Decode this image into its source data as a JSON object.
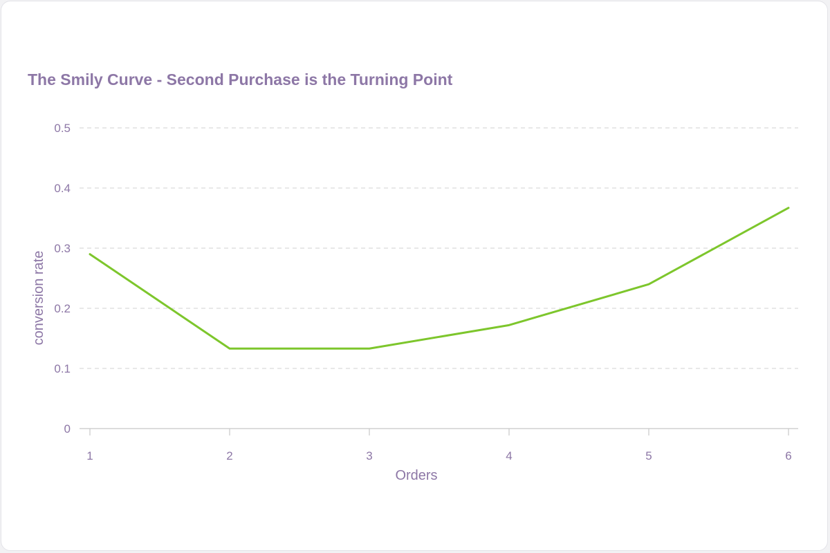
{
  "chart_data": {
    "type": "line",
    "title": "The Smily Curve - Second Purchase is the Turning Point",
    "xlabel": "Orders",
    "ylabel": "conversion rate",
    "x": [
      1,
      2,
      3,
      4,
      5,
      6
    ],
    "x_tick_labels": [
      "1",
      "2",
      "3",
      "4",
      "5",
      "6"
    ],
    "y_tick_labels": [
      "0",
      "0.1",
      "0.2",
      "0.3",
      "0.4",
      "0.5"
    ],
    "ylim": [
      0,
      0.5
    ],
    "grid": "horizontal dashed",
    "series": [
      {
        "values": [
          0.29,
          0.133,
          0.133,
          0.172,
          0.24,
          0.367
        ],
        "color": "#7dc62c"
      }
    ],
    "colors": {
      "text": "#8d77a6",
      "grid": "#d9d9d9",
      "axis": "#c8c8c8",
      "line": "#7dc62c"
    }
  }
}
